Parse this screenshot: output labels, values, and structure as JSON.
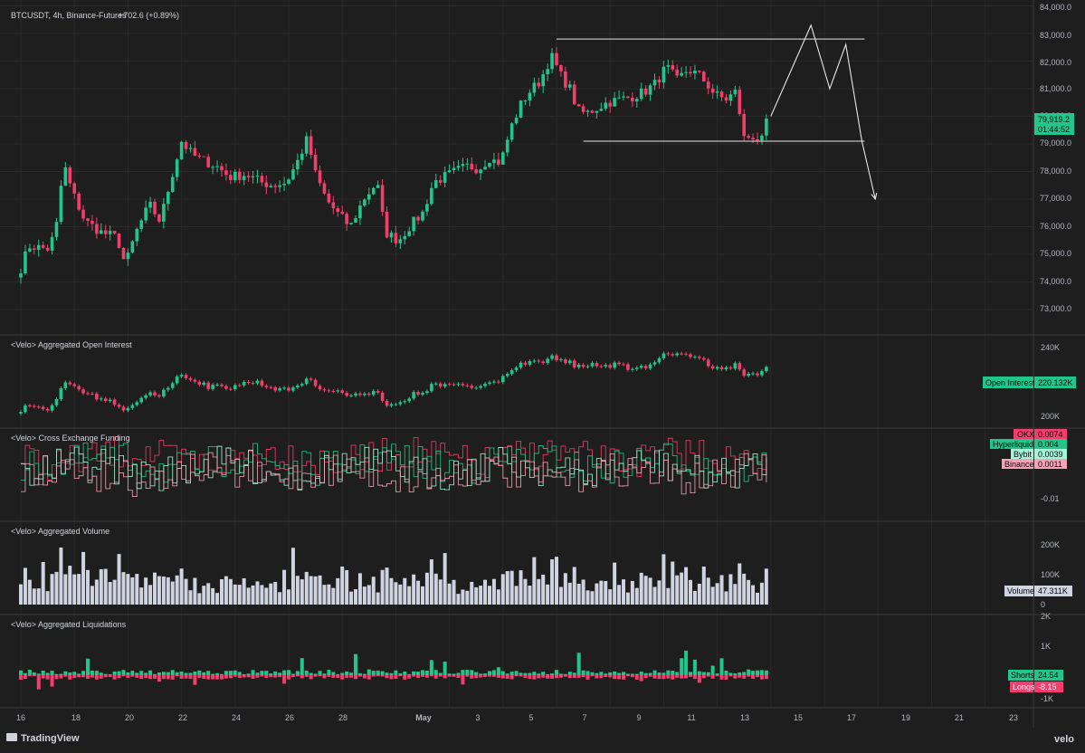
{
  "header": {
    "symbol": "BTCUSDT, 4h, Binance-Futures",
    "change": "+702.6 (+0.89%)"
  },
  "price_axis": {
    "ticks": [
      "84,000.0",
      "83,000.0",
      "82,000.0",
      "81,000.0",
      "80,000.0",
      "79,000.0",
      "78,000.0",
      "77,000.0",
      "76,000.0",
      "75,000.0",
      "74,000.0",
      "73,000.0"
    ],
    "current_price": "79,919.2",
    "countdown": "01:44:52"
  },
  "panes": {
    "open_interest": {
      "title": "<Velo> Aggregated Open Interest",
      "ticks": [
        "240K",
        "200K"
      ],
      "badge_label": "Open Interest",
      "badge_value": "220.132K"
    },
    "funding": {
      "title": "<Velo> Cross Exchange Funding",
      "ticks": [
        "-0.01"
      ]
    },
    "volume": {
      "title": "<Velo> Aggregated Volume",
      "ticks": [
        "200K",
        "100K",
        "0"
      ],
      "badge_label": "Volume",
      "badge_value": "47.311K"
    },
    "liquidations": {
      "title": "<Velo> Aggregated Liquidations",
      "ticks": [
        "2K",
        "1K",
        "-1K"
      ]
    }
  },
  "funding_badges": [
    {
      "label": "OKX",
      "value": "0.0074",
      "color": "#f23d6d"
    },
    {
      "label": "Hyperliquid",
      "value": "0.004",
      "color": "#22c58b"
    },
    {
      "label": "Bybit",
      "value": "0.0039",
      "color": "#a5f3d8"
    },
    {
      "label": "Binance",
      "value": "0.0011",
      "color": "#f5a3b8"
    }
  ],
  "liq_badges": [
    {
      "label": "Shorts",
      "value": "24.54",
      "color": "#22c58b"
    },
    {
      "label": "Longs",
      "value": "-8.15",
      "color": "#f23d6d"
    }
  ],
  "date_axis": [
    "16",
    "18",
    "20",
    "22",
    "24",
    "26",
    "28",
    "May",
    "3",
    "5",
    "7",
    "9",
    "11",
    "13",
    "15",
    "17",
    "19",
    "21",
    "23"
  ],
  "footer": {
    "brand": "TradingView",
    "velo": "velo"
  },
  "colors": {
    "up": "#22c58b",
    "down": "#f23d6d",
    "bg": "#1e1e1e",
    "grid": "#2a2a2a",
    "sep": "#3a3a3a",
    "volume": "#d0d3e0"
  },
  "chart_data": {
    "type": "candlestick",
    "title": "BTCUSDT, 4h, Binance-Futures",
    "x_range": [
      "Apr 16",
      "May 23"
    ],
    "ylim": [
      72500,
      84000
    ],
    "price_path": [
      [
        16.0,
        74500
      ],
      [
        16.3,
        75300
      ],
      [
        17.0,
        75200
      ],
      [
        17.3,
        75800
      ],
      [
        17.6,
        78300
      ],
      [
        17.9,
        77300
      ],
      [
        18.4,
        76200
      ],
      [
        19.0,
        75800
      ],
      [
        19.6,
        75600
      ],
      [
        19.9,
        74600
      ],
      [
        20.3,
        75800
      ],
      [
        20.8,
        76800
      ],
      [
        21.2,
        76200
      ],
      [
        21.6,
        77700
      ],
      [
        22.0,
        79100
      ],
      [
        22.4,
        78600
      ],
      [
        22.8,
        78400
      ],
      [
        23.3,
        78200
      ],
      [
        23.8,
        77800
      ],
      [
        24.4,
        77900
      ],
      [
        25.0,
        77600
      ],
      [
        25.4,
        77500
      ],
      [
        25.9,
        77600
      ],
      [
        26.3,
        78300
      ],
      [
        26.7,
        79200
      ],
      [
        27.0,
        77900
      ],
      [
        27.4,
        77000
      ],
      [
        27.8,
        76500
      ],
      [
        28.3,
        76000
      ],
      [
        28.8,
        77000
      ],
      [
        29.3,
        77600
      ],
      [
        29.6,
        75800
      ],
      [
        30.1,
        75500
      ],
      [
        30.5,
        76000
      ],
      [
        31.0,
        76500
      ],
      [
        31.4,
        77600
      ],
      [
        31.8,
        77800
      ],
      [
        32.2,
        78000
      ],
      [
        32.7,
        78200
      ],
      [
        33.1,
        78100
      ],
      [
        33.5,
        78500
      ],
      [
        33.8,
        78300
      ],
      [
        34.0,
        78600
      ],
      [
        34.3,
        79600
      ],
      [
        34.7,
        80500
      ],
      [
        35.0,
        80900
      ],
      [
        35.4,
        81300
      ],
      [
        35.8,
        82200
      ],
      [
        36.2,
        81400
      ],
      [
        36.5,
        81000
      ],
      [
        36.8,
        80200
      ],
      [
        37.1,
        80100
      ],
      [
        37.5,
        80300
      ],
      [
        37.9,
        80500
      ],
      [
        38.3,
        80600
      ],
      [
        38.8,
        80700
      ],
      [
        39.3,
        80900
      ],
      [
        39.7,
        81200
      ],
      [
        40.1,
        81800
      ],
      [
        40.5,
        81300
      ],
      [
        40.9,
        81700
      ],
      [
        41.3,
        81500
      ],
      [
        41.6,
        81200
      ],
      [
        41.9,
        80800
      ],
      [
        42.3,
        80600
      ],
      [
        42.7,
        80900
      ],
      [
        43.0,
        79200
      ],
      [
        43.3,
        79300
      ],
      [
        43.7,
        79100
      ],
      [
        43.9,
        79900
      ]
    ],
    "annotations": {
      "resistance": 82800,
      "support": 79100,
      "projection": [
        [
          44.0,
          80000
        ],
        [
          45.5,
          83300
        ],
        [
          46.2,
          81000
        ],
        [
          46.8,
          82600
        ],
        [
          47.4,
          79100
        ],
        [
          47.9,
          77000
        ]
      ]
    },
    "series": [
      {
        "name": "Aggregated Open Interest",
        "approx_range": [
          200000,
          240000
        ],
        "last": 220132
      },
      {
        "name": "Cross Exchange Funding",
        "last": {
          "OKX": 0.0074,
          "Hyperliquid": 0.004,
          "Bybit": 0.0039,
          "Binance": 0.0011
        }
      },
      {
        "name": "Aggregated Volume",
        "approx_range": [
          0,
          200000
        ],
        "last": 47311
      },
      {
        "name": "Aggregated Liquidations",
        "last": {
          "Shorts": 24.54,
          "Longs": -8.15
        }
      }
    ]
  }
}
